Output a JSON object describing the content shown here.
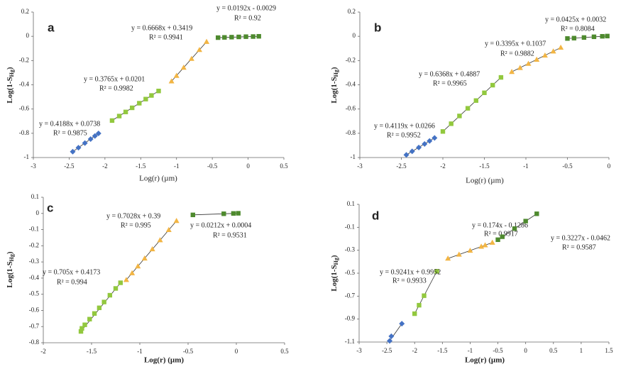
{
  "chart_data": [
    {
      "type": "scatter",
      "label": "a",
      "xlabel": "Log(r) (µm)",
      "ylabel": {
        "text": "Log(1-S",
        "sub": "Hg",
        "tail": ")"
      },
      "xlim": [
        -3,
        0.5
      ],
      "xticks": [
        -3,
        -2.5,
        -2,
        -1.5,
        -1,
        -0.5,
        0,
        0.5
      ],
      "ylim": [
        -1,
        0.2
      ],
      "yticks": [
        -1,
        -0.8,
        -0.6,
        -0.4,
        -0.2,
        0,
        0.2
      ],
      "series": [
        {
          "marker": "diamond",
          "color": "#4472c4",
          "equation": "y = 0.4188x + 0.0738",
          "r2": "R² = 0.9875",
          "x": [
            -2.45,
            -2.37,
            -2.28,
            -2.2,
            -2.14,
            -2.09
          ],
          "values": [
            -0.952,
            -0.919,
            -0.881,
            -0.848,
            -0.822,
            -0.801
          ]
        },
        {
          "marker": "square",
          "color": "#92c83e",
          "equation": "y = 0.3765x + 0.0201",
          "r2": "R² = 0.9982",
          "x": [
            -1.9,
            -1.8,
            -1.71,
            -1.62,
            -1.52,
            -1.43,
            -1.35,
            -1.25
          ],
          "values": [
            -0.695,
            -0.658,
            -0.624,
            -0.59,
            -0.552,
            -0.518,
            -0.488,
            -0.451
          ]
        },
        {
          "marker": "triangle",
          "color": "#f2b544",
          "equation": "y = 0.6668x + 0.3419",
          "r2": "R² = 0.9941",
          "x": [
            -1.07,
            -1.0,
            -0.9,
            -0.79,
            -0.68,
            -0.58
          ],
          "values": [
            -0.371,
            -0.325,
            -0.258,
            -0.185,
            -0.112,
            -0.045
          ]
        },
        {
          "marker": "square",
          "color": "#4e8a2e",
          "equation": "y = 0.0192x - 0.0029",
          "r2": "R² = 0.92",
          "x": [
            -0.42,
            -0.33,
            -0.23,
            -0.13,
            -0.03,
            0.07,
            0.15
          ],
          "values": [
            -0.011,
            -0.009,
            -0.007,
            -0.005,
            -0.003,
            -0.002,
            0
          ]
        }
      ]
    },
    {
      "type": "scatter",
      "label": "b",
      "xlabel": "Log(r) (µm)",
      "ylabel": {
        "text": "Log(1-S",
        "sub": "Hg",
        "tail": ")"
      },
      "xlim": [
        -3,
        0
      ],
      "xticks": [
        -3,
        -2.5,
        -2,
        -1.5,
        -1,
        -0.5,
        0
      ],
      "ylim": [
        -1,
        0.2
      ],
      "yticks": [
        -1,
        -0.8,
        -0.6,
        -0.4,
        -0.2,
        0,
        0.2
      ],
      "series": [
        {
          "marker": "diamond",
          "color": "#4472c4",
          "equation": "y = 0.4119x + 0.0266",
          "r2": "R² = 0.9952",
          "x": [
            -2.44,
            -2.37,
            -2.29,
            -2.22,
            -2.16,
            -2.1
          ],
          "values": [
            -0.978,
            -0.949,
            -0.917,
            -0.888,
            -0.863,
            -0.838
          ]
        },
        {
          "marker": "square",
          "color": "#92c83e",
          "equation": "y = 0.6368x + 0.4887",
          "r2": "R² = 0.9965",
          "x": [
            -2.0,
            -1.9,
            -1.8,
            -1.7,
            -1.6,
            -1.5,
            -1.4,
            -1.3
          ],
          "values": [
            -0.785,
            -0.721,
            -0.657,
            -0.594,
            -0.53,
            -0.466,
            -0.403,
            -0.339
          ]
        },
        {
          "marker": "triangle",
          "color": "#f2b544",
          "equation": "y = 0.3395x + 0.1037",
          "r2": "R² = 0.9882",
          "x": [
            -1.17,
            -1.07,
            -0.97,
            -0.87,
            -0.77,
            -0.67,
            -0.58
          ],
          "values": [
            -0.293,
            -0.26,
            -0.226,
            -0.192,
            -0.158,
            -0.124,
            -0.093
          ]
        },
        {
          "marker": "square",
          "color": "#4e8a2e",
          "equation": "y = 0.0425x + 0.0032",
          "r2": "R² = 0.8084",
          "x": [
            -0.5,
            -0.42,
            -0.3,
            -0.18,
            -0.08,
            -0.02
          ],
          "values": [
            -0.018,
            -0.015,
            -0.01,
            -0.004,
            0,
            0.002
          ]
        }
      ]
    },
    {
      "type": "scatter",
      "label": "c",
      "xlabel": "Log(r) (µm)",
      "ylabel": {
        "text": "Log(1-S",
        "sub": "Hg",
        "tail": ")"
      },
      "xlim": [
        -2,
        0.5
      ],
      "xticks": [
        -2,
        -1.5,
        -1,
        -0.5,
        0,
        0.5
      ],
      "ylim": [
        -0.8,
        0.1
      ],
      "yticks": [
        -0.8,
        -0.7,
        -0.6,
        -0.5,
        -0.4,
        -0.3,
        -0.2,
        -0.1,
        0,
        0.1
      ],
      "series": [
        {
          "marker": "square",
          "color": "#92c83e",
          "equation": "y = 0.705x + 0.4173",
          "r2": "R² = 0.994",
          "x": [
            -1.61,
            -1.6,
            -1.57,
            -1.52,
            -1.47,
            -1.42,
            -1.37,
            -1.31,
            -1.25,
            -1.2
          ],
          "values": [
            -0.73,
            -0.711,
            -0.689,
            -0.654,
            -0.619,
            -0.584,
            -0.548,
            -0.506,
            -0.464,
            -0.429
          ]
        },
        {
          "marker": "triangle",
          "color": "#f2b544",
          "equation": "y = 0.7028x + 0.39",
          "r2": "R² = 0.995",
          "x": [
            -1.14,
            -1.08,
            -1.02,
            -0.95,
            -0.87,
            -0.79,
            -0.7,
            -0.62
          ],
          "values": [
            -0.411,
            -0.369,
            -0.327,
            -0.278,
            -0.221,
            -0.165,
            -0.102,
            -0.046
          ]
        },
        {
          "marker": "square",
          "color": "#4e8a2e",
          "equation": "y = 0.0212x + 0.0004",
          "r2": "R² = 0.9531",
          "x": [
            -0.45,
            -0.13,
            -0.03,
            0.02
          ],
          "values": [
            -0.009,
            -0.002,
            0,
            0.001
          ]
        }
      ]
    },
    {
      "type": "scatter",
      "label": "d",
      "xlabel": "Log(r) (µm)",
      "ylabel": {
        "text": "Log(1-S",
        "sub": "Hg",
        "tail": ")"
      },
      "xlim": [
        -3,
        1.5
      ],
      "xticks": [
        -3,
        -2.5,
        -2,
        -1.5,
        -1,
        -0.5,
        0,
        0.5,
        1,
        1.5
      ],
      "ylim": [
        -1.1,
        0.1
      ],
      "yticks": [
        -1.1,
        -0.9,
        -0.7,
        -0.5,
        -0.3,
        -0.1,
        0.1
      ],
      "series": [
        {
          "marker": "diamond",
          "color": "#4472c4",
          "x": [
            -2.45,
            -2.42,
            -2.23
          ],
          "values": [
            -1.09,
            -1.05,
            -0.94
          ]
        },
        {
          "marker": "square",
          "color": "#92c83e",
          "equation": "y = 0.9241x + 0.9952",
          "r2": "R² = 0.9933",
          "x": [
            -2.0,
            -1.92,
            -1.83,
            -1.6
          ],
          "values": [
            -0.853,
            -0.779,
            -0.696,
            -0.483
          ]
        },
        {
          "marker": "triangle",
          "color": "#f2b544",
          "equation": "y = 0.174x - 0.1286",
          "r2": "R² = 0.9917",
          "x": [
            -1.4,
            -1.2,
            -1.0,
            -0.8,
            -0.73,
            -0.6
          ],
          "values": [
            -0.372,
            -0.337,
            -0.303,
            -0.268,
            -0.256,
            -0.233
          ]
        },
        {
          "marker": "square",
          "color": "#4e8a2e",
          "equation": "y = 0.3227x - 0.0462",
          "r2": "R² = 0.9587",
          "x": [
            -0.5,
            -0.42,
            -0.2,
            0,
            0.2
          ],
          "values": [
            -0.208,
            -0.182,
            -0.111,
            -0.046,
            0.018
          ]
        }
      ]
    }
  ]
}
